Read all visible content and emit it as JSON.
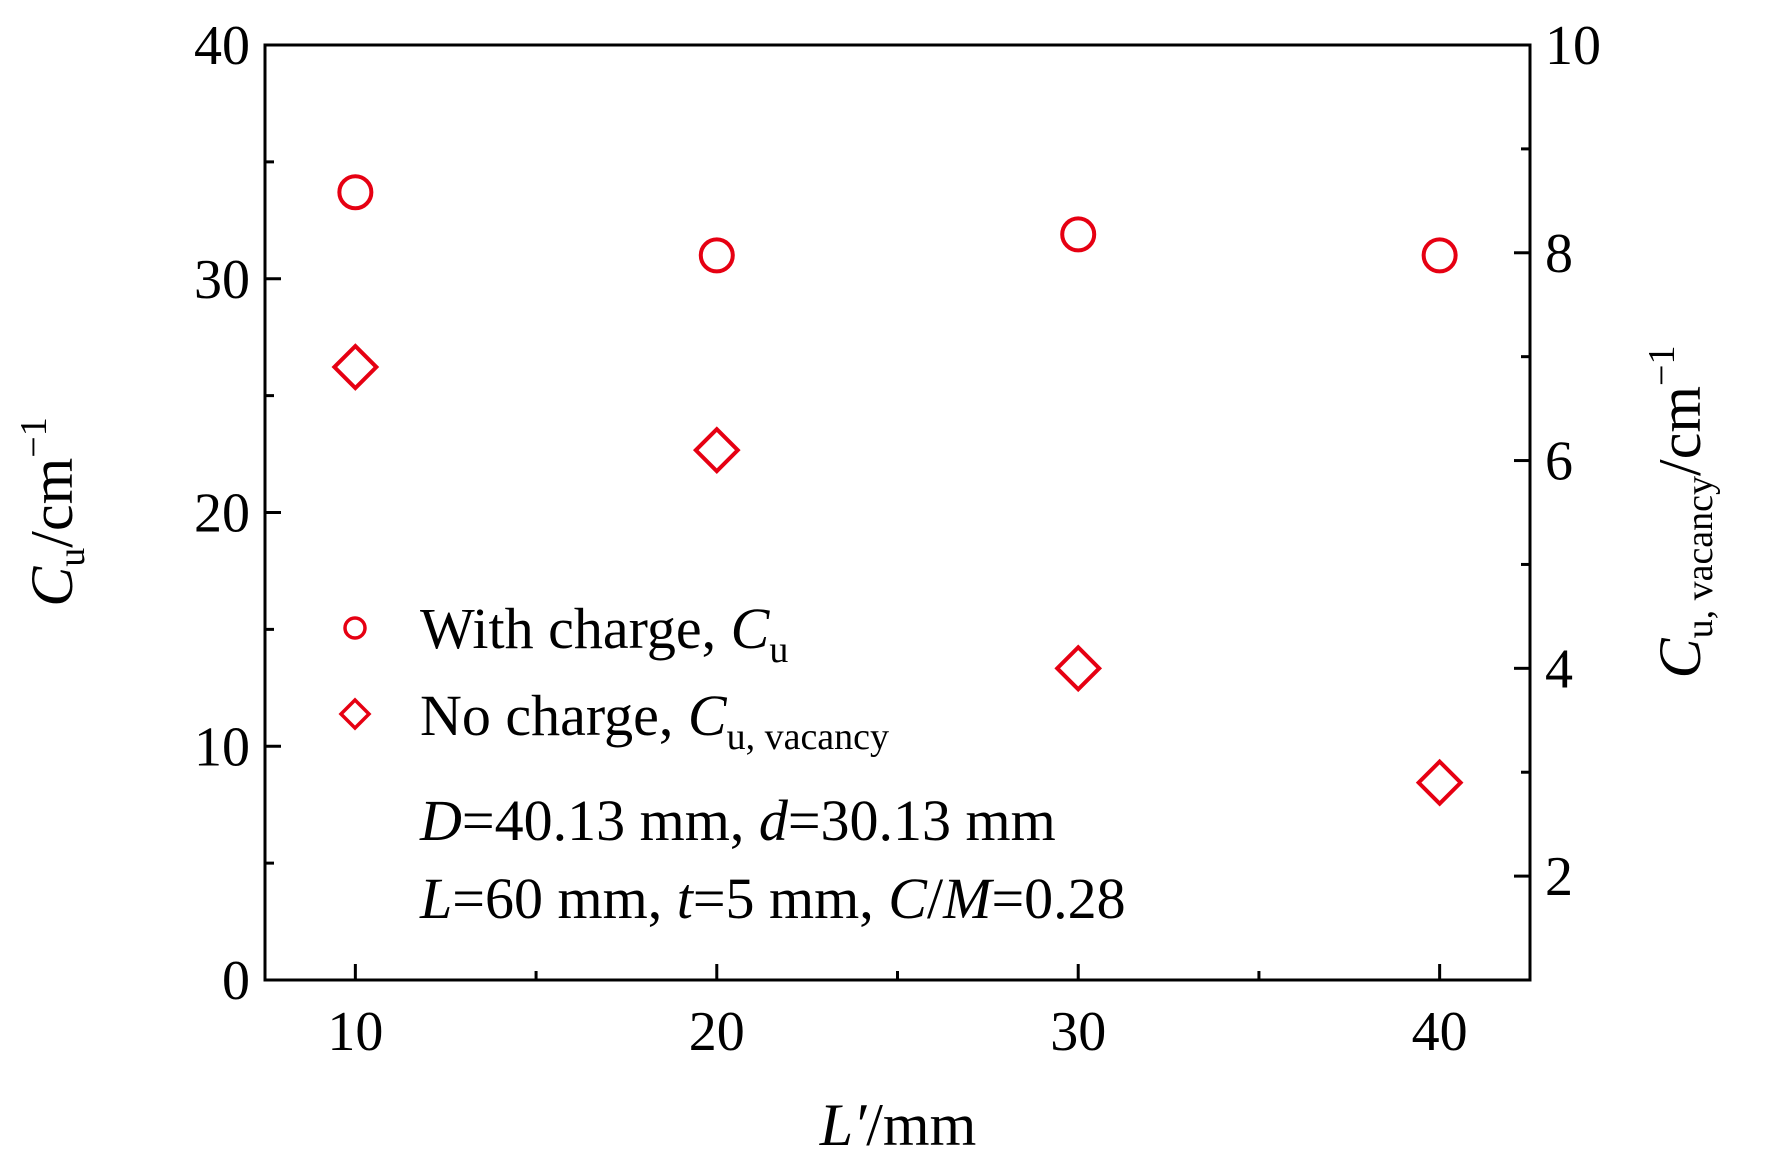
{
  "chart_data": {
    "type": "scatter",
    "x": [
      10,
      20,
      30,
      40
    ],
    "xlim": [
      7.5,
      42.5
    ],
    "ylim_left": [
      0,
      40
    ],
    "ylim_right": [
      1,
      10
    ],
    "x_ticks": [
      "10",
      "20",
      "30",
      "40"
    ],
    "y_left_ticks": [
      "0",
      "10",
      "20",
      "30",
      "40"
    ],
    "y_right_ticks": [
      "2",
      "4",
      "6",
      "8",
      "10"
    ],
    "xlabel": {
      "main": "L′",
      "unit": "/mm"
    },
    "ylabel_left": {
      "main": "C",
      "sub": "u",
      "unit": "/cm",
      "sup": "−1"
    },
    "ylabel_right": {
      "main": "C",
      "sub": "u, vacancy",
      "unit": "/cm",
      "sup": "−1"
    },
    "series": [
      {
        "name": "With charge, Cu",
        "legend_text": "With charge, ",
        "legend_main": "C",
        "legend_sub": "u",
        "marker": "circle",
        "axis": "left",
        "values": [
          33.7,
          31.0,
          31.9,
          31.0
        ]
      },
      {
        "name": "No charge, Cu, vacancy",
        "legend_text": "No charge, ",
        "legend_main": "C",
        "legend_sub": "u, vacancy",
        "marker": "diamond",
        "axis": "right",
        "values": [
          6.9,
          6.1,
          4.0,
          2.9
        ]
      }
    ],
    "annotations": [
      {
        "parts": [
          {
            "t": "D",
            "i": true
          },
          {
            "t": "=40.13 mm, ",
            "i": false
          },
          {
            "t": "d",
            "i": true
          },
          {
            "t": "=30.13 mm",
            "i": false
          }
        ]
      },
      {
        "parts": [
          {
            "t": "L",
            "i": true
          },
          {
            "t": "=60 mm, ",
            "i": false
          },
          {
            "t": "t",
            "i": true
          },
          {
            "t": "=5 mm, ",
            "i": false
          },
          {
            "t": "C",
            "i": true
          },
          {
            "t": "/",
            "i": false
          },
          {
            "t": "M",
            "i": true
          },
          {
            "t": "=0.28",
            "i": false
          }
        ]
      }
    ],
    "legend_position": "center-left",
    "grid": false,
    "marker_color": "#e60012"
  }
}
